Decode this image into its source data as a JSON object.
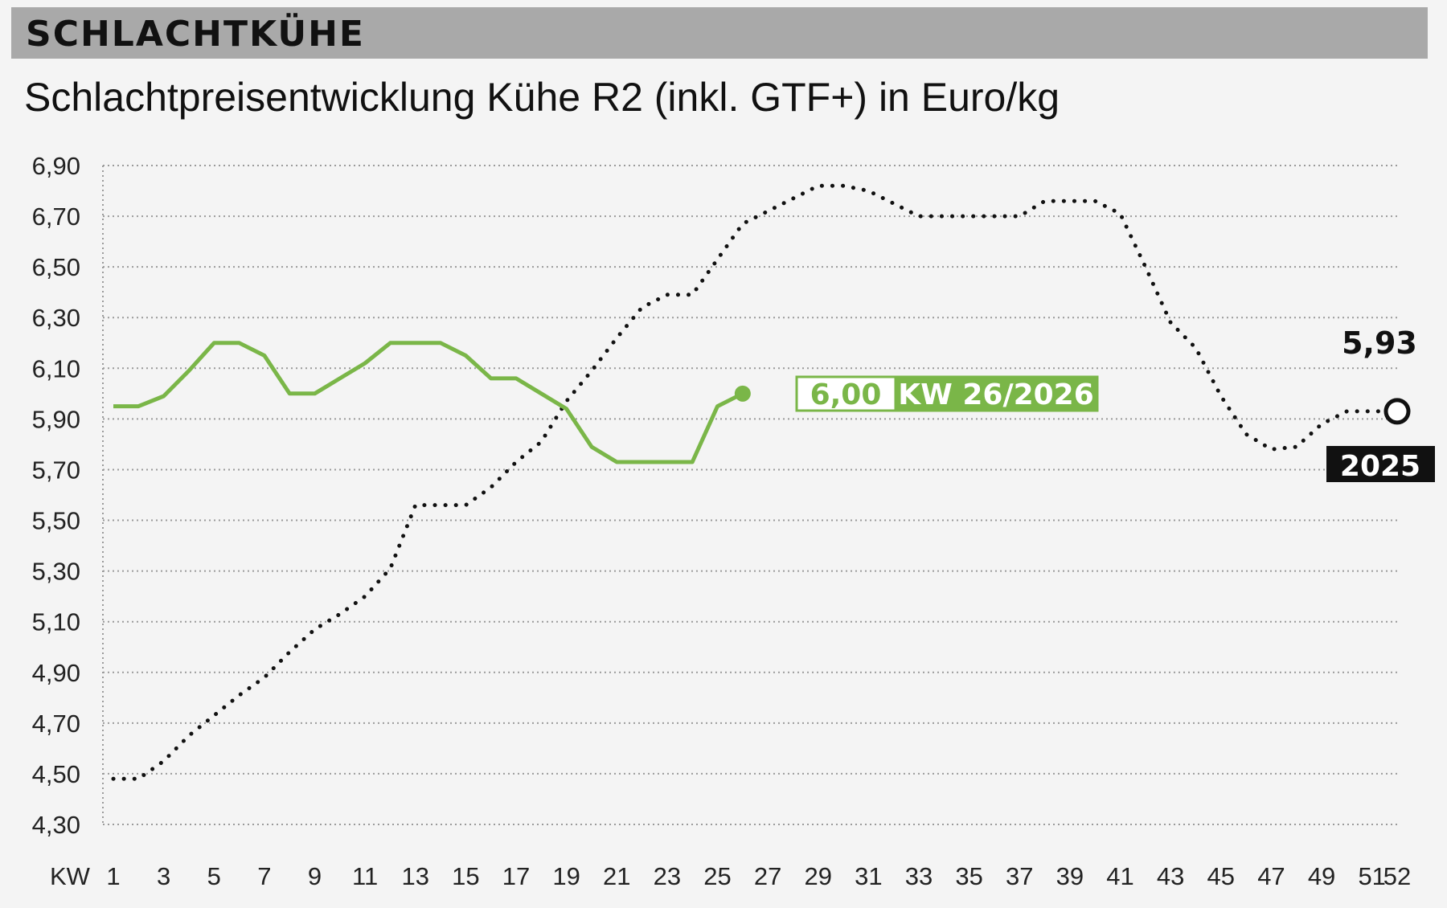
{
  "header": {
    "title": "SCHLACHTKÜHE",
    "subtitle": "Schlachtpreisentwicklung Kühe R2 (inkl. GTF+) in Euro/kg"
  },
  "colors": {
    "current_series": "#7ab648",
    "previous_series": "#111111",
    "grid": "#9a9a9a",
    "background": "#f4f4f4"
  },
  "chart_data": {
    "type": "line",
    "title": "Schlachtpreisentwicklung Kühe R2 (inkl. GTF+) in Euro/kg",
    "xlabel": "KW",
    "ylabel": "",
    "xlim": [
      1,
      52
    ],
    "ylim": [
      4.3,
      6.9
    ],
    "y_ticks": [
      "4,30",
      "4,50",
      "4,70",
      "4,90",
      "5,10",
      "5,30",
      "5,50",
      "5,70",
      "5,90",
      "6,10",
      "6,30",
      "6,50",
      "6,70",
      "6,90"
    ],
    "x_ticks": [
      1,
      3,
      5,
      7,
      9,
      11,
      13,
      15,
      17,
      19,
      21,
      23,
      25,
      27,
      29,
      31,
      33,
      35,
      37,
      39,
      41,
      43,
      45,
      47,
      49,
      51,
      52
    ],
    "grid": "horizontal-dotted",
    "series": [
      {
        "name": "2026",
        "style": "solid",
        "x": [
          1,
          2,
          3,
          4,
          5,
          6,
          7,
          8,
          9,
          10,
          11,
          12,
          13,
          14,
          15,
          16,
          17,
          18,
          19,
          20,
          21,
          22,
          23,
          24,
          25,
          26
        ],
        "y": [
          5.95,
          5.95,
          5.99,
          6.09,
          6.2,
          6.2,
          6.15,
          6.0,
          6.0,
          6.06,
          6.12,
          6.2,
          6.2,
          6.2,
          6.15,
          6.06,
          6.06,
          6.0,
          5.94,
          5.79,
          5.73,
          5.73,
          5.73,
          5.73,
          5.95,
          6.0
        ]
      },
      {
        "name": "2025",
        "style": "dotted",
        "x": [
          1,
          2,
          3,
          4,
          5,
          6,
          7,
          8,
          9,
          10,
          11,
          12,
          13,
          14,
          15,
          16,
          17,
          18,
          19,
          20,
          21,
          22,
          23,
          24,
          25,
          26,
          27,
          28,
          29,
          30,
          31,
          32,
          33,
          34,
          35,
          36,
          37,
          38,
          39,
          40,
          41,
          42,
          43,
          44,
          45,
          46,
          47,
          48,
          49,
          50,
          51,
          52
        ],
        "y": [
          4.48,
          4.48,
          4.55,
          4.65,
          4.73,
          4.81,
          4.88,
          4.98,
          5.07,
          5.13,
          5.2,
          5.31,
          5.56,
          5.56,
          5.56,
          5.63,
          5.73,
          5.81,
          5.97,
          6.09,
          6.22,
          6.34,
          6.39,
          6.39,
          6.53,
          6.67,
          6.72,
          6.77,
          6.82,
          6.82,
          6.8,
          6.75,
          6.7,
          6.7,
          6.7,
          6.7,
          6.7,
          6.76,
          6.76,
          6.76,
          6.71,
          6.5,
          6.28,
          6.18,
          5.99,
          5.84,
          5.78,
          5.79,
          5.88,
          5.93,
          5.93,
          5.93
        ]
      }
    ],
    "annotations": {
      "current_value": "6,00",
      "current_week": "KW 26/2026",
      "end_value": "5,93",
      "end_year": "2025"
    }
  }
}
